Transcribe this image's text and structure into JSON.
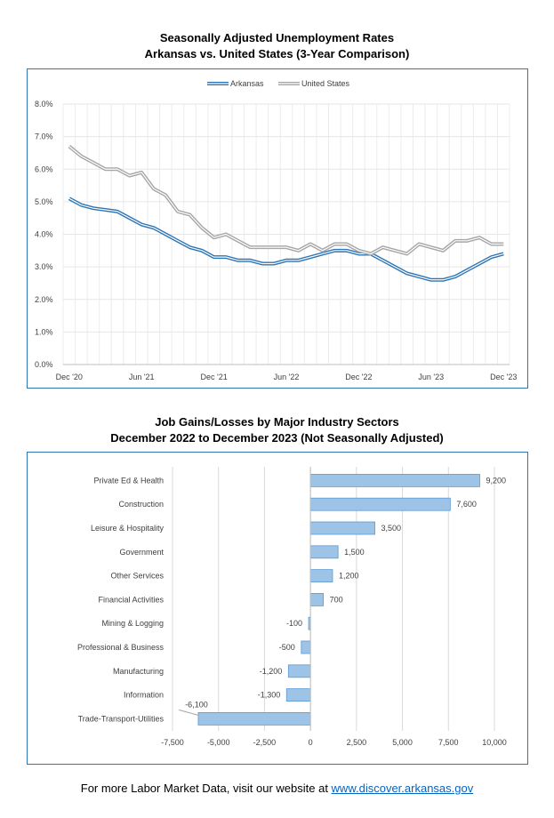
{
  "chart_data": [
    {
      "type": "line",
      "title": "Seasonally Adjusted Unemployment Rates",
      "subtitle": "Arkansas vs. United States (3-Year Comparison)",
      "x_tick_labels": [
        "Dec '20",
        "Jun '21",
        "Dec '21",
        "Jun '22",
        "Dec '22",
        "Jun '23",
        "Dec '23"
      ],
      "x": [
        "Dec 2020",
        "Jan 2021",
        "Feb 2021",
        "Mar 2021",
        "Apr 2021",
        "May 2021",
        "Jun 2021",
        "Jul 2021",
        "Aug 2021",
        "Sep 2021",
        "Oct 2021",
        "Nov 2021",
        "Dec 2021",
        "Jan 2022",
        "Feb 2022",
        "Mar 2022",
        "Apr 2022",
        "May 2022",
        "Jun 2022",
        "Jul 2022",
        "Aug 2022",
        "Sep 2022",
        "Oct 2022",
        "Nov 2022",
        "Dec 2022",
        "Jan 2023",
        "Feb 2023",
        "Mar 2023",
        "Apr 2023",
        "May 2023",
        "Jun 2023",
        "Jul 2023",
        "Aug 2023",
        "Sep 2023",
        "Oct 2023",
        "Nov 2023",
        "Dec 2023"
      ],
      "y_ticks": [
        "0.0%",
        "1.0%",
        "2.0%",
        "3.0%",
        "4.0%",
        "5.0%",
        "6.0%",
        "7.0%",
        "8.0%"
      ],
      "ylim": [
        0,
        8
      ],
      "grid": true,
      "legend_position": "top",
      "series": [
        {
          "name": "Arkansas",
          "color": "#2e75b6",
          "values": [
            5.1,
            4.9,
            4.8,
            4.75,
            4.7,
            4.5,
            4.3,
            4.2,
            4.0,
            3.8,
            3.6,
            3.5,
            3.3,
            3.3,
            3.2,
            3.2,
            3.1,
            3.1,
            3.2,
            3.2,
            3.3,
            3.4,
            3.5,
            3.5,
            3.4,
            3.4,
            3.2,
            3.0,
            2.8,
            2.7,
            2.6,
            2.6,
            2.7,
            2.9,
            3.1,
            3.3,
            3.4
          ]
        },
        {
          "name": "United States",
          "color": "#a6a6a6",
          "values": [
            6.7,
            6.4,
            6.2,
            6.0,
            6.0,
            5.8,
            5.9,
            5.4,
            5.2,
            4.7,
            4.6,
            4.2,
            3.9,
            4.0,
            3.8,
            3.6,
            3.6,
            3.6,
            3.6,
            3.5,
            3.7,
            3.5,
            3.7,
            3.7,
            3.5,
            3.4,
            3.6,
            3.5,
            3.4,
            3.7,
            3.6,
            3.5,
            3.8,
            3.8,
            3.9,
            3.7,
            3.7
          ]
        }
      ]
    },
    {
      "type": "bar",
      "orientation": "horizontal",
      "title": "Job Gains/Losses by Major Industry Sectors",
      "subtitle": "December 2022 to December 2023 (Not Seasonally Adjusted)",
      "categories": [
        "Private Ed & Health",
        "Construction",
        "Leisure & Hospitality",
        "Government",
        "Other Services",
        "Financial Activities",
        "Mining & Logging",
        "Professional & Business",
        "Manufacturing",
        "Information",
        "Trade-Transport-Utilities"
      ],
      "values": [
        9200,
        7600,
        3500,
        1500,
        1200,
        700,
        -100,
        -500,
        -1200,
        -1300,
        -6100
      ],
      "data_labels": [
        "9,200",
        "7,600",
        "3,500",
        "1,500",
        "1,200",
        "700",
        "-100",
        "-500",
        "-1,200",
        "-1,300",
        "-6,100"
      ],
      "x_ticks": [
        "-7,500",
        "-5,000",
        "-2,500",
        "0",
        "2,500",
        "5,000",
        "7,500",
        "10,000"
      ],
      "x_tick_values": [
        -7500,
        -5000,
        -2500,
        0,
        2500,
        5000,
        7500,
        10000
      ],
      "xlim": [
        -7500,
        10000
      ],
      "grid": true,
      "bar_color": "#9dc3e6"
    }
  ],
  "footer": {
    "text": "For more Labor Market Data, visit our website at ",
    "link": "www.discover.arkansas.gov"
  }
}
